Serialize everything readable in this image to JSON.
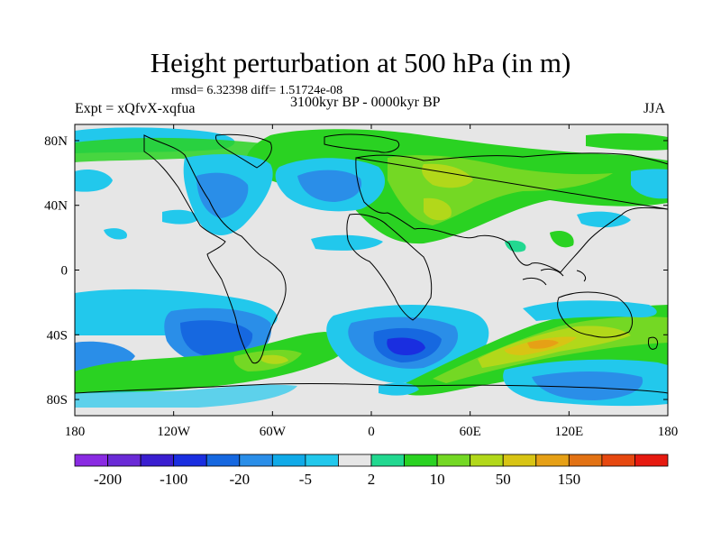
{
  "title": "Height perturbation at 500 hPa (in m)",
  "stats": "rmsd= 6.32398 diff= 1.51724e-08",
  "left_label": "Expt = xQfvX-xqfua",
  "center_label": "3100kyr BP - 0000kyr BP",
  "right_label": "JJA",
  "lat_ticks": [
    "80N",
    "40N",
    "0",
    "40S",
    "80S"
  ],
  "lon_ticks": [
    "180",
    "120W",
    "60W",
    "0",
    "60E",
    "120E",
    "180"
  ],
  "colorbar": {
    "colors": [
      "#8a2be2",
      "#6a2ad6",
      "#3a1ed0",
      "#1a2ee0",
      "#1668e0",
      "#2a8ee8",
      "#10aae8",
      "#22c8ec",
      "#e6e6e6",
      "#22d890",
      "#2ad222",
      "#74d824",
      "#b2d81a",
      "#d8c414",
      "#e6a016",
      "#e27214",
      "#e64810",
      "#e61a10"
    ],
    "labels": [
      "-200",
      "-100",
      "-20",
      "-5",
      "2",
      "10",
      "50",
      "150"
    ]
  }
}
